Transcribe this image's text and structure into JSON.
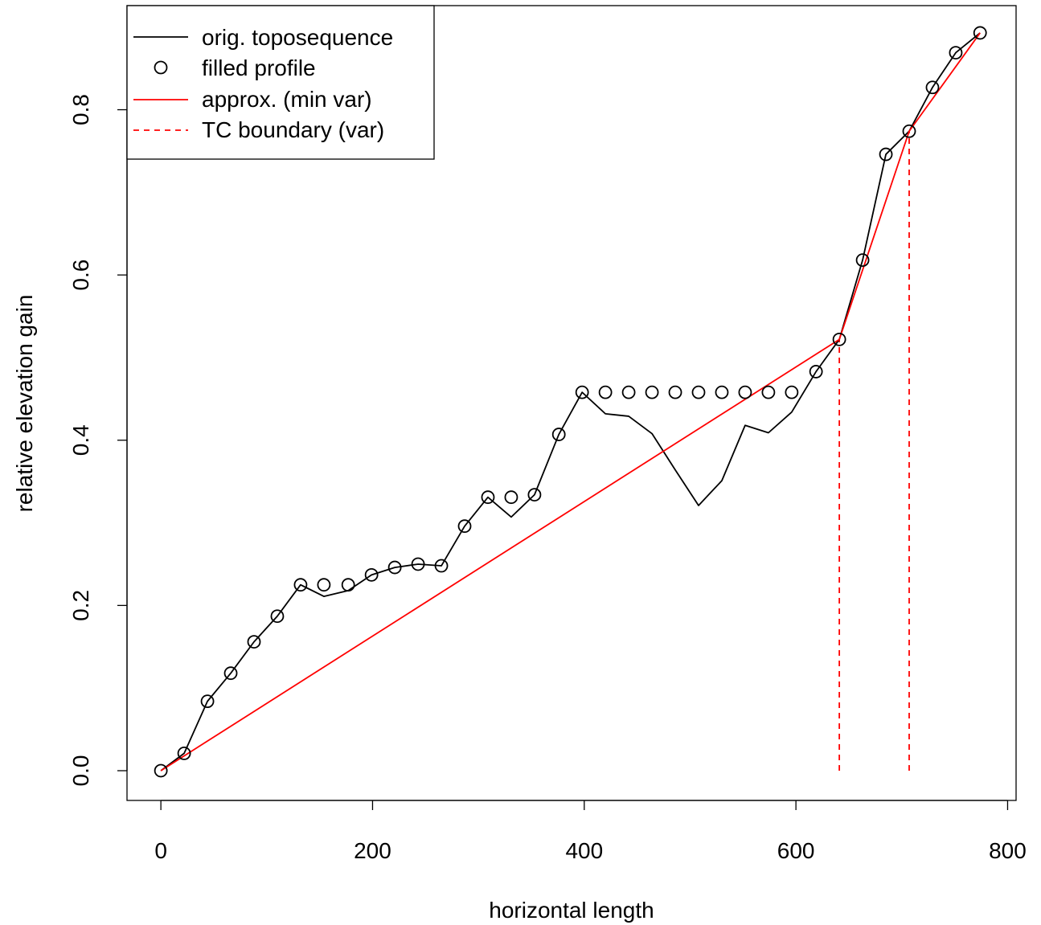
{
  "chart_data": {
    "type": "line",
    "title": "",
    "xlabel": "horizontal length",
    "ylabel": "relative elevation gain",
    "xlim": [
      -32,
      808
    ],
    "ylim": [
      -0.036,
      0.926
    ],
    "xticks": [
      0,
      200,
      400,
      600,
      800
    ],
    "xtick_labels": [
      "0",
      "200",
      "400",
      "600",
      "800"
    ],
    "yticks": [
      0.0,
      0.2,
      0.4,
      0.6,
      0.8
    ],
    "ytick_labels": [
      "0.0",
      "0.2",
      "0.4",
      "0.6",
      "0.8"
    ],
    "grid": false,
    "legend_position": "top-left",
    "legend": [
      {
        "label": "orig. toposequence",
        "style": "line",
        "color": "#000000"
      },
      {
        "label": "filled profile",
        "style": "circle",
        "color": "#000000"
      },
      {
        "label": "approx. (min var)",
        "style": "line",
        "color": "#ff0000"
      },
      {
        "label": "TC boundary (var)",
        "style": "dashed",
        "color": "#ff0000"
      }
    ],
    "series": [
      {
        "name": "orig. toposequence",
        "kind": "line",
        "color": "#000000",
        "x": [
          0,
          22,
          44,
          66,
          88,
          110,
          132,
          154,
          177,
          199,
          221,
          243,
          265,
          287,
          309,
          331,
          353,
          376,
          398,
          420,
          442,
          464,
          486,
          508,
          530,
          552,
          574,
          596,
          619,
          641,
          663,
          685,
          707,
          729,
          751,
          774
        ],
        "y": [
          0.0,
          0.021,
          0.084,
          0.118,
          0.156,
          0.187,
          0.225,
          0.211,
          0.218,
          0.237,
          0.246,
          0.25,
          0.248,
          0.296,
          0.331,
          0.307,
          0.334,
          0.407,
          0.458,
          0.432,
          0.429,
          0.408,
          0.364,
          0.321,
          0.351,
          0.418,
          0.409,
          0.434,
          0.483,
          0.522,
          0.618,
          0.746,
          0.774,
          0.827,
          0.869,
          0.893
        ]
      },
      {
        "name": "filled profile",
        "kind": "points",
        "color": "#000000",
        "x": [
          0,
          22,
          44,
          66,
          88,
          110,
          132,
          154,
          177,
          199,
          221,
          243,
          265,
          287,
          309,
          331,
          353,
          376,
          398,
          420,
          442,
          464,
          486,
          508,
          530,
          552,
          574,
          596,
          619,
          641,
          663,
          685,
          707,
          729,
          751,
          774
        ],
        "y": [
          0.0,
          0.021,
          0.084,
          0.118,
          0.156,
          0.187,
          0.225,
          0.225,
          0.225,
          0.237,
          0.246,
          0.25,
          0.248,
          0.296,
          0.331,
          0.331,
          0.334,
          0.407,
          0.458,
          0.458,
          0.458,
          0.458,
          0.458,
          0.458,
          0.458,
          0.458,
          0.458,
          0.458,
          0.483,
          0.522,
          0.618,
          0.746,
          0.774,
          0.827,
          0.869,
          0.893
        ]
      },
      {
        "name": "approx. (min var)",
        "kind": "line",
        "color": "#ff0000",
        "x": [
          0,
          641,
          707,
          774
        ],
        "y": [
          0.0,
          0.522,
          0.774,
          0.893
        ]
      }
    ],
    "vlines": [
      {
        "name": "TC boundary (var)",
        "x": 641,
        "y0": 0,
        "y1": 0.522,
        "color": "#ff0000",
        "dash": true
      },
      {
        "name": "TC boundary (var)",
        "x": 707,
        "y0": 0,
        "y1": 0.774,
        "color": "#ff0000",
        "dash": true
      }
    ]
  }
}
